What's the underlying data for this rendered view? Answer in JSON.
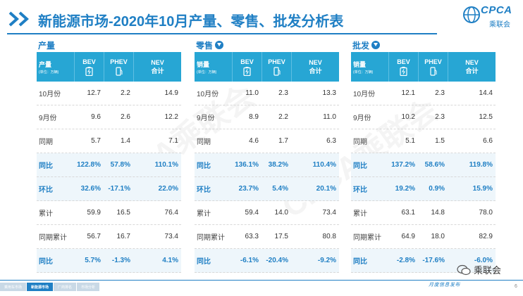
{
  "header": {
    "title": "新能源市场-2020年10月产量、零售、批发分析表",
    "logo_text": "CPCA",
    "logo_sub": "乘联会"
  },
  "watermark": "CPCA乘联会",
  "sections": [
    {
      "title": "产量",
      "has_icon": false,
      "header": {
        "label": "产量",
        "unit": "(单位：万辆)",
        "bev": "BEV",
        "phev": "PHEV",
        "nev": "NEV",
        "nev_sub": "合计"
      },
      "rows": [
        {
          "label": "10月份",
          "bev": "12.7",
          "phev": "2.2",
          "nev": "14.9",
          "hl": false
        },
        {
          "label": "9月份",
          "bev": "9.6",
          "phev": "2.6",
          "nev": "12.2",
          "hl": false
        },
        {
          "label": "同期",
          "bev": "5.7",
          "phev": "1.4",
          "nev": "7.1",
          "hl": false
        },
        {
          "label": "同比",
          "bev": "122.8%",
          "phev": "57.8%",
          "nev": "110.1%",
          "hl": true
        },
        {
          "label": "环比",
          "bev": "32.6%",
          "phev": "-17.1%",
          "nev": "22.0%",
          "hl": true
        },
        {
          "label": "累计",
          "bev": "59.9",
          "phev": "16.5",
          "nev": "76.4",
          "hl": false
        },
        {
          "label": "同期累计",
          "bev": "56.7",
          "phev": "16.7",
          "nev": "73.4",
          "hl": false
        },
        {
          "label": "同比",
          "bev": "5.7%",
          "phev": "-1.3%",
          "nev": "4.1%",
          "hl": true
        }
      ]
    },
    {
      "title": "零售",
      "has_icon": true,
      "header": {
        "label": "销量",
        "unit": "(单位：万辆)",
        "bev": "BEV",
        "phev": "PHEV",
        "nev": "NEV",
        "nev_sub": "合计"
      },
      "rows": [
        {
          "label": "10月份",
          "bev": "11.0",
          "phev": "2.3",
          "nev": "13.3",
          "hl": false
        },
        {
          "label": "9月份",
          "bev": "8.9",
          "phev": "2.2",
          "nev": "11.0",
          "hl": false
        },
        {
          "label": "同期",
          "bev": "4.6",
          "phev": "1.7",
          "nev": "6.3",
          "hl": false
        },
        {
          "label": "同比",
          "bev": "136.1%",
          "phev": "38.2%",
          "nev": "110.4%",
          "hl": true
        },
        {
          "label": "环比",
          "bev": "23.7%",
          "phev": "5.4%",
          "nev": "20.1%",
          "hl": true
        },
        {
          "label": "累计",
          "bev": "59.4",
          "phev": "14.0",
          "nev": "73.4",
          "hl": false
        },
        {
          "label": "同期累计",
          "bev": "63.3",
          "phev": "17.5",
          "nev": "80.8",
          "hl": false
        },
        {
          "label": "同比",
          "bev": "-6.1%",
          "phev": "-20.4%",
          "nev": "-9.2%",
          "hl": true
        }
      ]
    },
    {
      "title": "批发",
      "has_icon": true,
      "header": {
        "label": "销量",
        "unit": "(单位：万辆)",
        "bev": "BEV",
        "phev": "PHEV",
        "nev": "NEV",
        "nev_sub": "合计"
      },
      "rows": [
        {
          "label": "10月份",
          "bev": "12.1",
          "phev": "2.3",
          "nev": "14.4",
          "hl": false
        },
        {
          "label": "9月份",
          "bev": "10.2",
          "phev": "2.3",
          "nev": "12.5",
          "hl": false
        },
        {
          "label": "同期",
          "bev": "5.1",
          "phev": "1.5",
          "nev": "6.6",
          "hl": false
        },
        {
          "label": "同比",
          "bev": "137.2%",
          "phev": "58.6%",
          "nev": "119.8%",
          "hl": true
        },
        {
          "label": "环比",
          "bev": "19.2%",
          "phev": "0.9%",
          "nev": "15.9%",
          "hl": true
        },
        {
          "label": "累计",
          "bev": "63.1",
          "phev": "14.8",
          "nev": "78.0",
          "hl": false
        },
        {
          "label": "同期累计",
          "bev": "64.9",
          "phev": "18.0",
          "nev": "82.9",
          "hl": false
        },
        {
          "label": "同比",
          "bev": "-2.8%",
          "phev": "-17.6%",
          "nev": "-6.0%",
          "hl": true
        }
      ]
    }
  ],
  "footer": {
    "tabs": [
      {
        "label": "乘用车市场",
        "active": false
      },
      {
        "label": "新能源市场",
        "active": true
      },
      {
        "label": "厂商排名",
        "active": false
      },
      {
        "label": "市场分析",
        "active": false
      }
    ],
    "wechat_name": "乘联会",
    "slogan": "月度信息发布",
    "page_number": "6"
  },
  "colors": {
    "accent": "#1f7fc4",
    "header_bg": "#27a6d4",
    "highlight_row": "#eef6fb"
  }
}
